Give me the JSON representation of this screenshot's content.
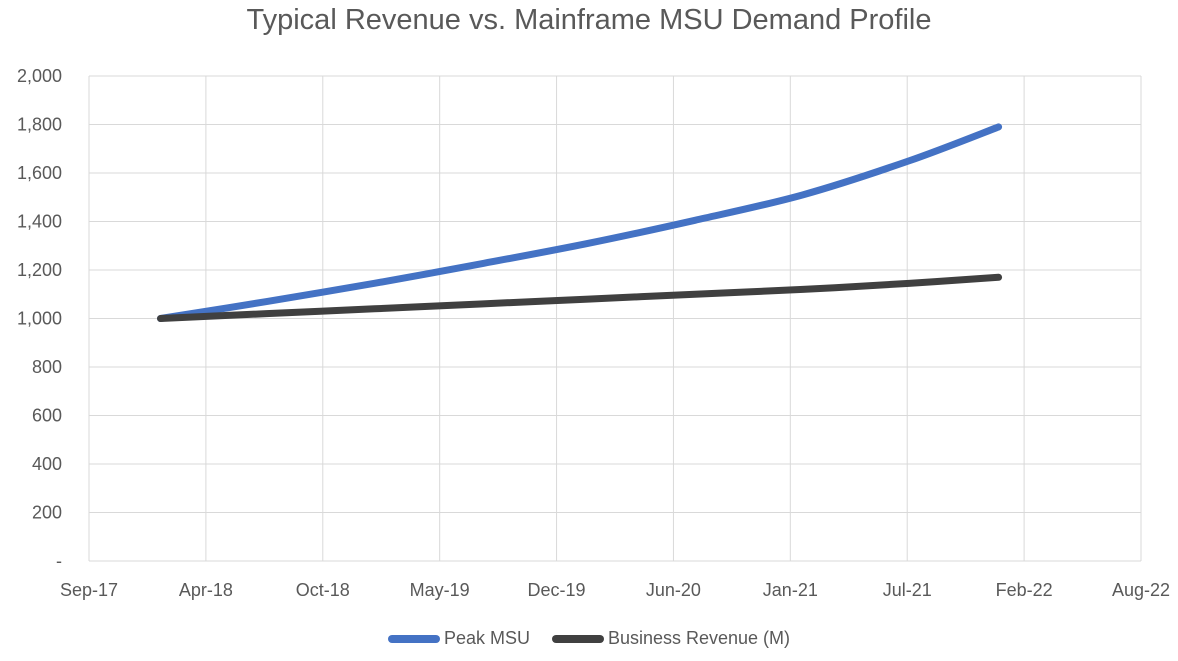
{
  "chart_data": {
    "type": "line",
    "title": "Typical Revenue vs. Mainframe MSU Demand Profile",
    "xlabel": "",
    "ylabel": "",
    "x_axis_type": "date",
    "x_range": [
      "2017-09-01",
      "2022-08-01"
    ],
    "x_tick_labels": [
      "Sep-17",
      "Apr-18",
      "Oct-18",
      "May-19",
      "Dec-19",
      "Jun-20",
      "Jan-21",
      "Jul-21",
      "Feb-22",
      "Aug-22"
    ],
    "ylim": [
      0,
      2000
    ],
    "y_tick_values": [
      0,
      200,
      400,
      600,
      800,
      1000,
      1200,
      1400,
      1600,
      1800,
      2000
    ],
    "y_tick_labels": [
      "-",
      "200",
      "400",
      "600",
      "800",
      "1,000",
      "1,200",
      "1,400",
      "1,600",
      "1,800",
      "2,000"
    ],
    "grid": true,
    "legend_position": "bottom",
    "x": [
      "2018-01-01",
      "2018-07-01",
      "2019-01-01",
      "2019-07-01",
      "2020-01-01",
      "2020-07-01",
      "2021-01-01",
      "2021-07-01",
      "2021-12-01"
    ],
    "series": [
      {
        "name": "Peak MSU",
        "color": "#4472c4",
        "values": [
          1000,
          1070,
          1145,
          1225,
          1310,
          1405,
          1510,
          1650,
          1790
        ]
      },
      {
        "name": "Business Revenue (M)",
        "color": "#404040",
        "values": [
          1000,
          1020,
          1040,
          1060,
          1080,
          1100,
          1120,
          1145,
          1170
        ]
      }
    ]
  }
}
